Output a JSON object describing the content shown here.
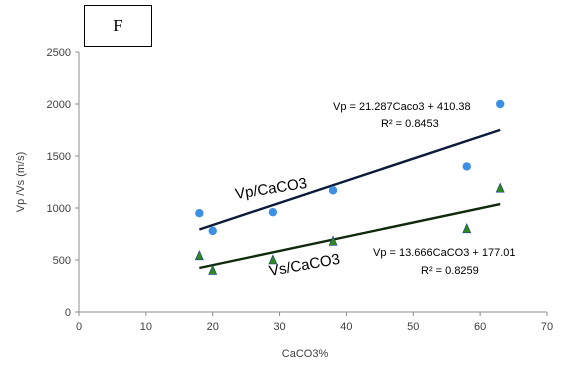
{
  "panel_label": "F",
  "colors": {
    "vp_marker": "#3d8fe3",
    "vs_marker": "#2d8a1a",
    "vs_marker_edge": "#1b3a9a",
    "vp_trend": "#0c1a3a",
    "vs_trend": "#0f2a0a",
    "axis_text": "#404040",
    "chart_text": "#000000"
  },
  "chart_data": {
    "type": "scatter",
    "title": "",
    "xlabel": "CaCO3%",
    "ylabel": "Vp /Vs (m/s)",
    "xlim": [
      0,
      70
    ],
    "ylim": [
      0,
      2500
    ],
    "xticks": [
      0,
      10,
      20,
      30,
      40,
      50,
      60,
      70
    ],
    "yticks": [
      0,
      500,
      1000,
      1500,
      2000,
      2500
    ],
    "grid": false,
    "series": [
      {
        "key": "vp",
        "marker": "circle",
        "points": [
          {
            "x": 18,
            "y": 950
          },
          {
            "x": 20,
            "y": 780
          },
          {
            "x": 29,
            "y": 960
          },
          {
            "x": 38,
            "y": 1170
          },
          {
            "x": 58,
            "y": 1400
          },
          {
            "x": 63,
            "y": 2000
          }
        ],
        "trendline": {
          "slope": 21.287,
          "intercept": 410.38,
          "x_range": [
            18,
            63
          ]
        },
        "inline_label": "Vp/CaCO3",
        "equation": "Vp = 21.287Caco3 + 410.38",
        "r2": "R² = 0.8453"
      },
      {
        "key": "vs",
        "marker": "triangle",
        "points": [
          {
            "x": 18,
            "y": 540
          },
          {
            "x": 20,
            "y": 400
          },
          {
            "x": 29,
            "y": 500
          },
          {
            "x": 38,
            "y": 680
          },
          {
            "x": 58,
            "y": 800
          },
          {
            "x": 63,
            "y": 1190
          }
        ],
        "trendline": {
          "slope": 13.666,
          "intercept": 177.01,
          "x_range": [
            18,
            63
          ]
        },
        "inline_label": "Vs/CaCO3",
        "equation": "Vp = 13.666CaCO3 + 177.01",
        "r2": "R² = 0.8259"
      }
    ]
  }
}
